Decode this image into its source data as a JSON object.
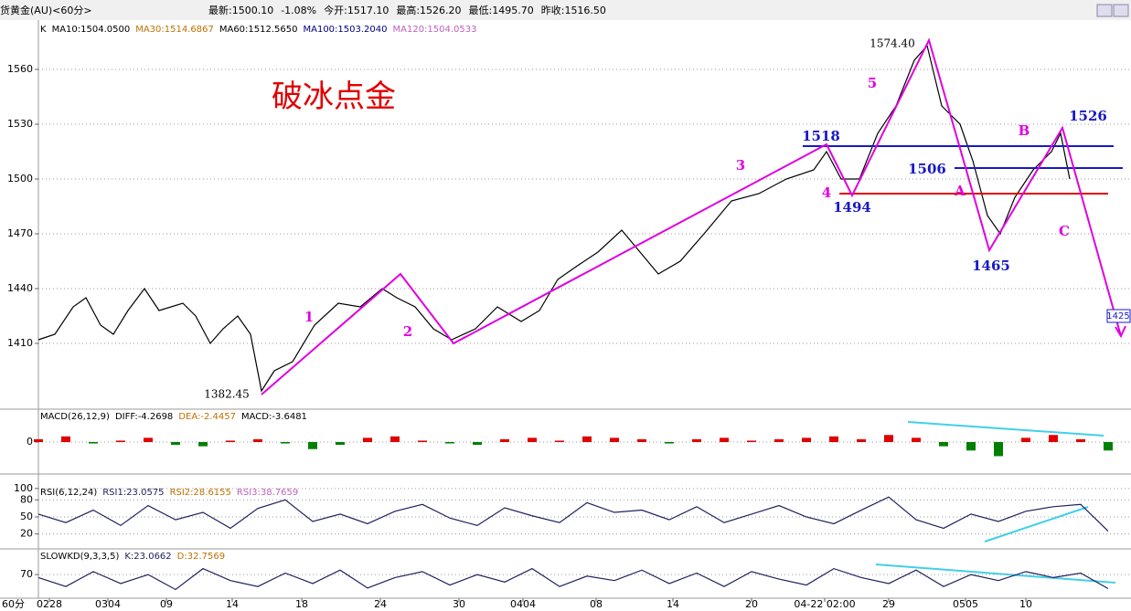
{
  "header": {
    "symbol": "货黄金(AU)<60分>",
    "quotes": [
      "最新:1500.10",
      "-1.08%",
      "今开:1517.10",
      "最高:1526.20",
      "最低:1495.70",
      "昨收:1516.50"
    ]
  },
  "chart_data": [
    {
      "type": "line",
      "title": "破冰点金",
      "xlim": [
        0,
        597
      ],
      "ylim": [
        1375,
        1587
      ],
      "yticks": [
        1410,
        1440,
        1470,
        1500,
        1530,
        1560
      ],
      "grid": true,
      "series": [
        {
          "name": "K",
          "color": "#000000",
          "x": [
            0,
            9,
            19,
            26,
            34,
            41,
            49,
            58,
            66,
            79,
            86,
            94,
            101,
            109,
            116,
            122,
            129,
            139,
            151,
            164,
            176,
            188,
            196,
            206,
            216,
            226,
            239,
            251,
            264,
            274,
            284,
            294,
            306,
            319,
            329,
            339,
            351,
            364,
            379,
            394,
            409,
            424,
            431,
            439,
            449,
            459,
            469,
            479,
            486,
            494,
            504,
            511,
            519,
            526,
            534,
            544,
            554,
            559,
            564
          ],
          "values": [
            1412,
            1415,
            1430,
            1435,
            1420,
            1415,
            1428,
            1440,
            1428,
            1432,
            1425,
            1410,
            1418,
            1425,
            1415,
            1384,
            1395,
            1400,
            1420,
            1432,
            1430,
            1440,
            1435,
            1430,
            1418,
            1412,
            1418,
            1430,
            1422,
            1428,
            1445,
            1452,
            1460,
            1472,
            1460,
            1448,
            1455,
            1470,
            1488,
            1492,
            1500,
            1505,
            1515,
            1500,
            1500,
            1525,
            1540,
            1565,
            1573,
            1540,
            1530,
            1510,
            1480,
            1470,
            1490,
            1505,
            1515,
            1525,
            1500
          ]
        }
      ],
      "legend_texts": [
        {
          "label": "MA10:1504.0500",
          "color": "#000000"
        },
        {
          "label": "MA30:1514.6867",
          "color": "#c07000"
        },
        {
          "label": "MA60:1512.5650",
          "color": "#000000"
        },
        {
          "label": "MA100:1503.2040",
          "color": "#000080"
        },
        {
          "label": "MA120:1504.0533",
          "color": "#c060c0"
        }
      ],
      "wave": {
        "color": "#e000e0",
        "x": [
          122,
          198,
          227,
          431,
          445,
          487,
          520,
          560,
          592
        ],
        "values": [
          1382,
          1448,
          1410,
          1519,
          1491,
          1576,
          1461,
          1528,
          1414
        ]
      },
      "levels": [
        {
          "value": 1518,
          "color": "#1818c8",
          "x": [
            418,
            588
          ]
        },
        {
          "value": 1506,
          "color": "#1818c8",
          "x": [
            501,
            593
          ]
        },
        {
          "value": 1492,
          "color": "#e00000",
          "x": [
            438,
            585
          ]
        }
      ],
      "annotations": [
        {
          "text": "1",
          "x": 148,
          "y": 1424,
          "color": "#e000e0"
        },
        {
          "text": "2",
          "x": 202,
          "y": 1416,
          "color": "#e000e0"
        },
        {
          "text": "3",
          "x": 384,
          "y": 1507,
          "color": "#e000e0"
        },
        {
          "text": "4",
          "x": 431,
          "y": 1492,
          "color": "#e000e0"
        },
        {
          "text": "5",
          "x": 456,
          "y": 1552,
          "color": "#e000e0"
        },
        {
          "text": "A",
          "x": 504,
          "y": 1493,
          "color": "#e000e0"
        },
        {
          "text": "B",
          "x": 539,
          "y": 1526,
          "color": "#e000e0"
        },
        {
          "text": "C",
          "x": 561,
          "y": 1471,
          "color": "#e000e0"
        },
        {
          "text": "1518",
          "x": 428,
          "y": 1523,
          "color": "#1818c8"
        },
        {
          "text": "1494",
          "x": 445,
          "y": 1484,
          "color": "#1818c8"
        },
        {
          "text": "1506",
          "x": 486,
          "y": 1505,
          "color": "#1818c8"
        },
        {
          "text": "1465",
          "x": 521,
          "y": 1452,
          "color": "#1818c8"
        },
        {
          "text": "1526",
          "x": 574,
          "y": 1534,
          "color": "#1818c8"
        },
        {
          "text": "1382.45",
          "x": 103,
          "y": 1382,
          "color": "#000000"
        },
        {
          "text": "1574.40",
          "x": 467,
          "y": 1574,
          "color": "#000000"
        }
      ],
      "price_tag": {
        "value": 1425,
        "label": "1425"
      }
    },
    {
      "type": "bar",
      "title": "MACD(26,12,9)",
      "xlim": [
        0,
        597
      ],
      "ylim": [
        -22,
        22
      ],
      "yticks": [
        0
      ],
      "grid": true,
      "up_color": "#e00000",
      "down_color": "#008000",
      "legend_texts": [
        {
          "label": "DIFF:-4.2698",
          "color": "#000000"
        },
        {
          "label": "DEA:-2.4457",
          "color": "#c07000"
        },
        {
          "label": "MACD:-3.6481",
          "color": "#000000"
        }
      ],
      "x": [
        0,
        15,
        30,
        45,
        60,
        75,
        90,
        105,
        120,
        135,
        150,
        165,
        180,
        195,
        210,
        225,
        240,
        255,
        270,
        285,
        300,
        315,
        330,
        345,
        360,
        375,
        390,
        405,
        420,
        435,
        450,
        465,
        480,
        495,
        510,
        525,
        540,
        555,
        570,
        585
      ],
      "values": [
        2,
        4,
        -1,
        1,
        3,
        -2,
        -3,
        1,
        2,
        -1,
        -5,
        -2,
        3,
        4,
        1,
        -1,
        -2,
        2,
        3,
        1,
        4,
        3,
        2,
        -1,
        2,
        3,
        1,
        2,
        3,
        4,
        2,
        5,
        3,
        -3,
        -6,
        -10,
        3,
        5,
        2,
        -6
      ]
    },
    {
      "type": "line",
      "title": "RSI(6,12,24)",
      "xlim": [
        0,
        597
      ],
      "ylim": [
        -3,
        103
      ],
      "yticks": [
        20,
        50,
        80,
        100
      ],
      "grid": true,
      "legend_texts": [
        {
          "label": "RSI2:28.6155",
          "color": "#c07000"
        },
        {
          "label": "RSI3:38.7659",
          "color": "#c060c0"
        }
      ],
      "series": [
        {
          "name": "RSI1:23.0575",
          "color": "#202060",
          "x": [
            0,
            15,
            30,
            45,
            60,
            75,
            90,
            105,
            120,
            135,
            150,
            165,
            180,
            195,
            210,
            225,
            240,
            255,
            270,
            285,
            300,
            315,
            330,
            345,
            360,
            375,
            390,
            405,
            420,
            435,
            450,
            465,
            480,
            495,
            510,
            525,
            540,
            555,
            570,
            585
          ],
          "values": [
            55,
            40,
            62,
            35,
            70,
            45,
            58,
            30,
            65,
            80,
            42,
            55,
            38,
            60,
            72,
            48,
            35,
            66,
            52,
            40,
            75,
            58,
            62,
            45,
            68,
            40,
            55,
            70,
            50,
            38,
            62,
            85,
            45,
            30,
            55,
            42,
            60,
            68,
            72,
            25
          ]
        }
      ]
    },
    {
      "type": "line",
      "title": "SLOWKD(9,3,3,5)",
      "xlim": [
        0,
        597
      ],
      "ylim": [
        0,
        150
      ],
      "yticks": [
        70
      ],
      "grid": true,
      "legend_texts": [
        {
          "label": "D:32.7569",
          "color": "#c07000"
        }
      ],
      "series": [
        {
          "name": "K:23.0662",
          "color": "#202060",
          "x": [
            0,
            15,
            30,
            45,
            60,
            75,
            90,
            105,
            120,
            135,
            150,
            165,
            180,
            195,
            210,
            225,
            240,
            255,
            270,
            285,
            300,
            315,
            330,
            345,
            360,
            375,
            390,
            405,
            420,
            435,
            450,
            465,
            480,
            495,
            510,
            525,
            540,
            555,
            570,
            585
          ],
          "values": [
            60,
            30,
            80,
            40,
            70,
            20,
            90,
            50,
            30,
            75,
            40,
            85,
            25,
            60,
            80,
            35,
            70,
            45,
            90,
            30,
            65,
            50,
            85,
            40,
            75,
            30,
            80,
            55,
            35,
            90,
            60,
            40,
            85,
            30,
            70,
            50,
            80,
            60,
            75,
            23
          ]
        }
      ],
      "x_unit": "60分",
      "xticks": [
        {
          "value": 6,
          "label": "0228"
        },
        {
          "value": 38,
          "label": "0304"
        },
        {
          "value": 70,
          "label": "09"
        },
        {
          "value": 106,
          "label": "14"
        },
        {
          "value": 144,
          "label": "18"
        },
        {
          "value": 187,
          "label": "24"
        },
        {
          "value": 230,
          "label": "30"
        },
        {
          "value": 265,
          "label": "0404"
        },
        {
          "value": 305,
          "label": "08"
        },
        {
          "value": 347,
          "label": "14"
        },
        {
          "value": 390,
          "label": "20"
        },
        {
          "value": 430,
          "label": "04-22 02:00"
        },
        {
          "value": 465,
          "label": "29"
        },
        {
          "value": 507,
          "label": "0505"
        },
        {
          "value": 540,
          "label": "10"
        }
      ]
    }
  ]
}
